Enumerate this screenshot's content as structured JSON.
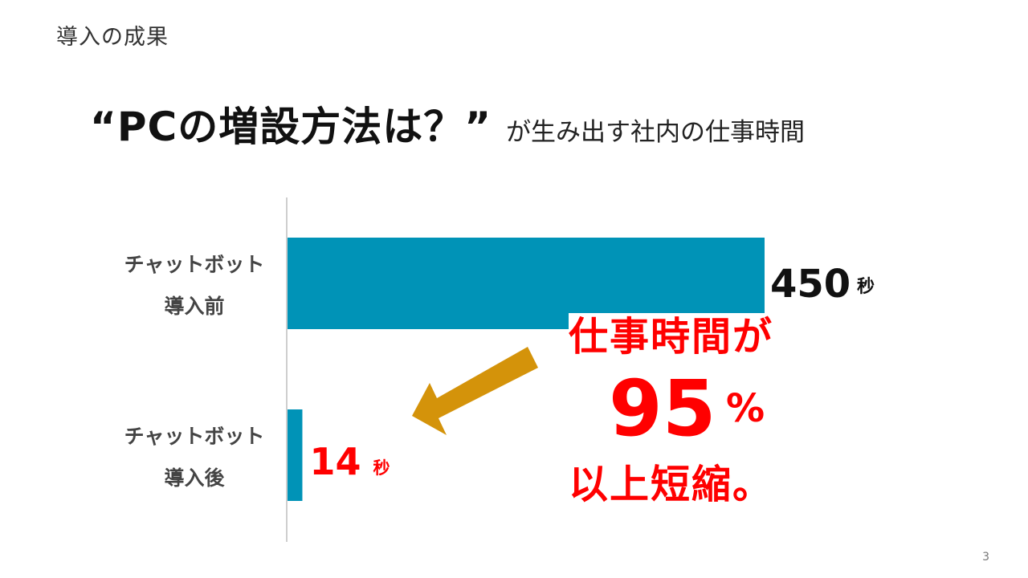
{
  "section_title": "導入の成果",
  "headline": {
    "main": "“PCの増設方法は？”",
    "sub": "が生み出す社内の仕事時間"
  },
  "chart_data": {
    "type": "bar",
    "orientation": "horizontal",
    "categories": [
      [
        "チャットボット",
        "導入前"
      ],
      [
        "チャットボット",
        "導入後"
      ]
    ],
    "values": [
      450,
      14
    ],
    "unit": "秒",
    "value_labels": [
      {
        "value": "450",
        "unit": "秒"
      },
      {
        "value": "14",
        "unit": "秒"
      }
    ],
    "xlim": [
      0,
      500
    ],
    "grid": false,
    "title": "",
    "xlabel": "",
    "ylabel": ""
  },
  "callout": {
    "line1": "仕事時間が",
    "percent_value": "95",
    "percent_sign": "%",
    "line3": "以上短縮。"
  },
  "page_number": "3",
  "colors": {
    "bar": "#0093b7",
    "highlight": "#ff0000",
    "arrow": "#d4930a",
    "axis": "#cfcfcf"
  }
}
